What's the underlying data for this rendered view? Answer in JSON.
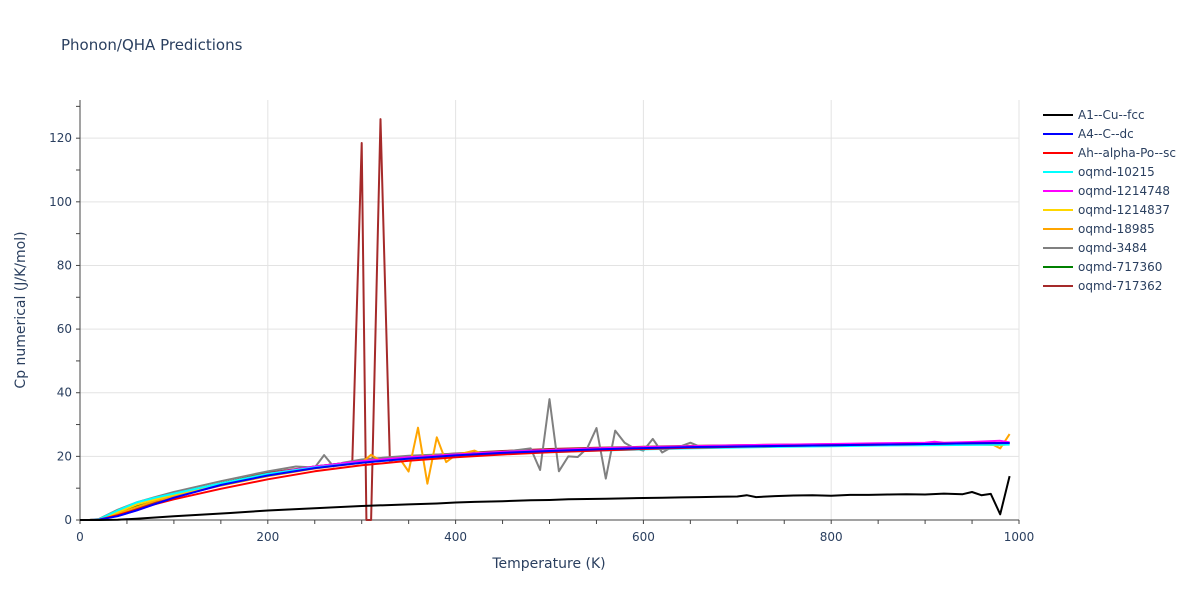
{
  "chart_data": {
    "type": "line",
    "title": "Phonon/QHA Predictions",
    "xlabel": "Temperature (K)",
    "ylabel": "Cp numerical (J/K/mol)",
    "xlim": [
      0,
      1000
    ],
    "ylim": [
      0,
      132
    ],
    "xticks": [
      0,
      200,
      400,
      600,
      800,
      1000
    ],
    "yticks": [
      0,
      20,
      40,
      60,
      80,
      100,
      120
    ],
    "grid": true,
    "legend_position": "right",
    "series": [
      {
        "name": "A1--Cu--fcc",
        "color": "#000000",
        "x": [
          0,
          10,
          20,
          40,
          60,
          80,
          100,
          130,
          160,
          180,
          200,
          250,
          300,
          350,
          380,
          400,
          420,
          450,
          480,
          500,
          520,
          540,
          560,
          580,
          600,
          620,
          640,
          660,
          680,
          700,
          710,
          720,
          740,
          760,
          780,
          800,
          820,
          840,
          860,
          880,
          900,
          920,
          940,
          950,
          960,
          970,
          980,
          990
        ],
        "y": [
          0,
          0,
          0,
          0.1,
          0.4,
          0.8,
          1.2,
          1.7,
          2.2,
          2.6,
          3.0,
          3.7,
          4.4,
          4.9,
          5.2,
          5.5,
          5.7,
          5.9,
          6.2,
          6.3,
          6.5,
          6.6,
          6.7,
          6.8,
          6.9,
          7.0,
          7.1,
          7.2,
          7.3,
          7.4,
          7.8,
          7.2,
          7.5,
          7.7,
          7.8,
          7.6,
          7.9,
          7.9,
          8.0,
          8.1,
          8.0,
          8.3,
          8.1,
          8.8,
          7.8,
          8.2,
          1.8,
          13.8
        ]
      },
      {
        "name": "A4--C--dc",
        "color": "#0000ff",
        "x": [
          0,
          10,
          20,
          40,
          60,
          80,
          100,
          150,
          200,
          250,
          300,
          350,
          400,
          450,
          500,
          550,
          600,
          650,
          700,
          750,
          800,
          850,
          900,
          950,
          990
        ],
        "y": [
          0,
          0,
          0.1,
          1.2,
          3.0,
          5.0,
          7.0,
          11.0,
          14.0,
          16.3,
          18.0,
          19.3,
          20.3,
          21.1,
          21.7,
          22.2,
          22.6,
          22.9,
          23.1,
          23.3,
          23.5,
          23.7,
          23.9,
          24.1,
          24.2
        ]
      },
      {
        "name": "Ah--alpha-Po--sc",
        "color": "#ff0000",
        "x": [
          0,
          10,
          20,
          40,
          60,
          80,
          100,
          150,
          200,
          250,
          300,
          350,
          400,
          450,
          500,
          550,
          600,
          650,
          700,
          750,
          800,
          850,
          900,
          950,
          990
        ],
        "y": [
          0,
          0,
          0.1,
          1.5,
          3.2,
          5.0,
          6.5,
          9.8,
          12.8,
          15.3,
          17.2,
          18.6,
          19.7,
          20.6,
          21.3,
          21.8,
          22.3,
          22.7,
          23.0,
          23.3,
          23.5,
          23.7,
          23.9,
          24.1,
          24.2
        ]
      },
      {
        "name": "oqmd-10215",
        "color": "#00ffff",
        "x": [
          0,
          10,
          20,
          40,
          60,
          80,
          100,
          150,
          200,
          250,
          300,
          350,
          400,
          450,
          500,
          550,
          600,
          650,
          700,
          750,
          800,
          850,
          900,
          950,
          990
        ],
        "y": [
          0,
          0,
          0.2,
          3.0,
          5.5,
          7.0,
          8.3,
          11.5,
          14.5,
          16.5,
          18.0,
          19.2,
          20.0,
          20.7,
          21.3,
          21.8,
          22.2,
          22.5,
          22.8,
          23.0,
          23.2,
          23.4,
          23.5,
          23.6,
          23.7
        ]
      },
      {
        "name": "oqmd-1214748",
        "color": "#ff00ff",
        "x": [
          0,
          10,
          20,
          40,
          60,
          80,
          100,
          150,
          200,
          250,
          300,
          350,
          400,
          450,
          500,
          550,
          600,
          650,
          700,
          750,
          800,
          850,
          900,
          910,
          920,
          950,
          980,
          990
        ],
        "y": [
          0,
          0,
          0.1,
          1.3,
          3.0,
          5.0,
          7.0,
          11.0,
          14.5,
          16.8,
          18.5,
          19.7,
          20.6,
          21.4,
          22.0,
          22.5,
          22.9,
          23.2,
          23.5,
          23.7,
          23.9,
          24.1,
          24.3,
          24.6,
          24.3,
          24.5,
          24.9,
          24.4
        ]
      },
      {
        "name": "oqmd-1214837",
        "color": "#ffd700",
        "x": [
          0,
          10,
          20,
          40,
          60,
          80,
          100,
          150,
          200,
          250,
          300,
          350,
          400,
          450,
          500,
          550,
          600,
          650,
          700,
          750,
          800,
          850,
          900,
          950,
          980,
          990
        ],
        "y": [
          0,
          0,
          0.2,
          2.5,
          4.8,
          6.5,
          8.0,
          11.3,
          14.2,
          16.4,
          18.2,
          19.4,
          20.3,
          21.0,
          21.6,
          22.1,
          22.4,
          22.7,
          23.0,
          23.2,
          23.4,
          23.5,
          23.6,
          23.8,
          23.5,
          23.9
        ]
      },
      {
        "name": "oqmd-18985",
        "color": "#ffa500",
        "x": [
          0,
          10,
          20,
          40,
          60,
          80,
          100,
          150,
          200,
          250,
          300,
          310,
          320,
          330,
          340,
          350,
          360,
          370,
          380,
          390,
          400,
          420,
          430,
          450,
          500,
          550,
          600,
          650,
          700,
          750,
          800,
          850,
          900,
          950,
          970,
          980,
          990
        ],
        "y": [
          0,
          0,
          0.2,
          2.0,
          4.0,
          6.0,
          7.5,
          10.8,
          13.8,
          16.2,
          18.0,
          20.5,
          18.6,
          19.2,
          19.5,
          15.2,
          29.0,
          11.4,
          26.0,
          18.2,
          20.4,
          21.8,
          20.5,
          21.3,
          21.9,
          22.4,
          22.7,
          23.0,
          23.2,
          23.4,
          23.5,
          23.6,
          23.8,
          23.9,
          24.0,
          22.5,
          27.0
        ]
      },
      {
        "name": "oqmd-3484",
        "color": "#808080",
        "x": [
          0,
          10,
          20,
          40,
          60,
          80,
          100,
          150,
          200,
          230,
          250,
          260,
          270,
          280,
          300,
          350,
          400,
          450,
          480,
          490,
          500,
          510,
          520,
          530,
          540,
          550,
          560,
          570,
          580,
          590,
          600,
          610,
          620,
          630,
          640,
          650,
          660,
          700,
          750,
          800,
          850,
          900,
          950,
          990
        ],
        "y": [
          0,
          0,
          0.3,
          3.2,
          5.5,
          7.2,
          8.8,
          12.2,
          15.3,
          16.8,
          16.5,
          20.4,
          16.8,
          18.0,
          19.0,
          20.2,
          20.8,
          21.4,
          22.5,
          15.7,
          38.0,
          15.3,
          20.0,
          19.8,
          22.5,
          28.9,
          13.0,
          28.1,
          24.3,
          22.6,
          21.8,
          25.5,
          21.2,
          22.9,
          23.2,
          24.3,
          23.1,
          23.2,
          23.4,
          23.6,
          23.8,
          23.9,
          24.0,
          24.1
        ]
      },
      {
        "name": "oqmd-717360",
        "color": "#008000",
        "x": [
          0,
          10,
          20,
          40,
          60,
          80,
          100,
          150,
          200,
          250,
          300,
          350,
          400,
          450,
          500,
          550,
          600,
          650,
          700,
          750,
          800,
          850,
          900,
          950,
          990
        ],
        "y": [
          0,
          0,
          0.2,
          2.2,
          4.5,
          6.4,
          8.0,
          11.5,
          14.5,
          16.8,
          18.5,
          19.7,
          20.6,
          21.3,
          21.9,
          22.4,
          22.8,
          23.1,
          23.3,
          23.5,
          23.7,
          23.8,
          24.0,
          24.1,
          24.2
        ]
      },
      {
        "name": "oqmd-717362",
        "color": "#a52a2a",
        "x": [
          0,
          10,
          20,
          40,
          60,
          80,
          100,
          150,
          200,
          250,
          290,
          300,
          305,
          310,
          320,
          330,
          340,
          400,
          450,
          500,
          550,
          600,
          650,
          700,
          750,
          800,
          850,
          900,
          950,
          990
        ],
        "y": [
          0,
          0,
          0.1,
          1.5,
          3.5,
          5.5,
          7.5,
          11.5,
          14.8,
          16.8,
          18.2,
          118.5,
          0,
          0,
          126.0,
          18.4,
          19.8,
          20.9,
          21.7,
          22.3,
          22.7,
          23.0,
          23.3,
          23.5,
          23.7,
          23.8,
          23.9,
          24.0,
          24.1,
          24.2
        ]
      }
    ]
  }
}
